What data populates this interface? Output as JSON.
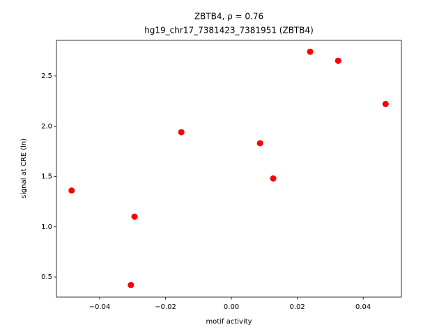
{
  "chart_data": {
    "type": "scatter",
    "title": "ZBTB4, ρ = 0.76",
    "subtitle": "hg19_chr17_7381423_7381951 (ZBTB4)",
    "x_label": "motif activity",
    "y_label": "signal at CRE (ln)",
    "color": "#ff0000",
    "x": [
      -0.0485,
      -0.0294,
      -0.0305,
      -0.0152,
      0.0087,
      0.0127,
      0.0239,
      0.0324,
      0.0468
    ],
    "values": [
      1.36,
      1.1,
      0.42,
      1.94,
      1.83,
      1.48,
      2.74,
      2.65,
      2.22
    ],
    "xlim": [
      -0.0531,
      0.0516
    ],
    "ylim": [
      0.3,
      2.853
    ],
    "xticks": [
      {
        "value": -0.04,
        "label": "−0.04"
      },
      {
        "value": -0.02,
        "label": "−0.02"
      },
      {
        "value": 0,
        "label": "0.00"
      },
      {
        "value": 0.02,
        "label": "0.02"
      },
      {
        "value": 0.04,
        "label": "0.04"
      }
    ],
    "yticks": [
      0.5,
      {
        "value": 1,
        "label": "1.0"
      },
      1.5,
      {
        "value": 2,
        "label": "2.0"
      },
      2.5
    ],
    "grid": false
  }
}
